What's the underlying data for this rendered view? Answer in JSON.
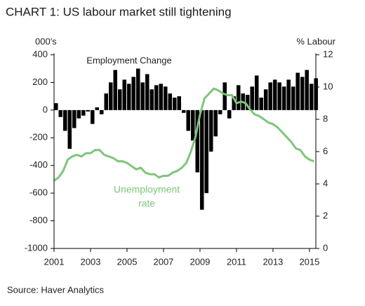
{
  "chart_data": {
    "type": "bar-line",
    "title": "CHART 1: US labour market still tightening",
    "y_label": "000's",
    "y2_label": "% Labour",
    "source": "Source: Haver Analytics",
    "annotations": [
      {
        "lines": [
          "Employment Change"
        ]
      },
      {
        "lines": [
          "Unemployment",
          "rate"
        ]
      }
    ],
    "x": [
      2001,
      2001.25,
      2001.5,
      2001.75,
      2002,
      2002.25,
      2002.5,
      2002.75,
      2003,
      2003.25,
      2003.5,
      2003.75,
      2004,
      2004.25,
      2004.5,
      2004.75,
      2005,
      2005.25,
      2005.5,
      2005.75,
      2006,
      2006.25,
      2006.5,
      2006.75,
      2007,
      2007.25,
      2007.5,
      2007.75,
      2008,
      2008.25,
      2008.5,
      2008.75,
      2009,
      2009.25,
      2009.5,
      2009.75,
      2010,
      2010.25,
      2010.5,
      2010.75,
      2011,
      2011.25,
      2011.5,
      2011.75,
      2012,
      2012.25,
      2012.5,
      2012.75,
      2013,
      2013.25,
      2013.5,
      2013.75,
      2014,
      2014.25,
      2014.5,
      2014.75,
      2015,
      2015.25
    ],
    "series": [
      {
        "name": "Employment Change",
        "type": "bar",
        "color": "#000000",
        "values": [
          50,
          -50,
          -150,
          -280,
          -130,
          -60,
          -40,
          -10,
          -100,
          20,
          -30,
          120,
          200,
          290,
          150,
          220,
          190,
          240,
          300,
          200,
          260,
          150,
          180,
          190,
          170,
          120,
          90,
          100,
          -20,
          -150,
          -220,
          -450,
          -720,
          -600,
          -300,
          -190,
          -30,
          200,
          -60,
          100,
          180,
          120,
          110,
          170,
          250,
          90,
          150,
          200,
          220,
          200,
          170,
          220,
          170,
          270,
          240,
          290,
          190,
          230
        ]
      },
      {
        "name": "Unemployment rate",
        "type": "line",
        "axis": "y2",
        "color": "#7dc67a",
        "values": [
          4.2,
          4.4,
          4.8,
          5.5,
          5.7,
          5.8,
          5.7,
          5.9,
          5.9,
          6.1,
          6.1,
          5.8,
          5.7,
          5.6,
          5.4,
          5.4,
          5.3,
          5.1,
          4.9,
          5.0,
          4.7,
          4.6,
          4.6,
          4.4,
          4.5,
          4.5,
          4.7,
          4.8,
          5.0,
          5.3,
          6.0,
          6.9,
          8.3,
          9.3,
          9.6,
          9.9,
          9.8,
          9.6,
          9.5,
          9.5,
          9.0,
          9.1,
          9.0,
          8.6,
          8.3,
          8.2,
          8.0,
          7.8,
          7.7,
          7.5,
          7.2,
          6.9,
          6.6,
          6.2,
          6.1,
          5.7,
          5.5,
          5.4
        ]
      }
    ],
    "xlim": [
      2001,
      2015.35
    ],
    "xticks": [
      2001,
      2003,
      2005,
      2007,
      2009,
      2011,
      2013,
      2015
    ],
    "ylim": [
      -1000,
      400
    ],
    "yticks": [
      -1000,
      -800,
      -600,
      -400,
      -200,
      0,
      200,
      400
    ],
    "y2lim": [
      0,
      12
    ],
    "y2ticks": [
      0,
      2,
      4,
      6,
      8,
      10,
      12
    ]
  }
}
